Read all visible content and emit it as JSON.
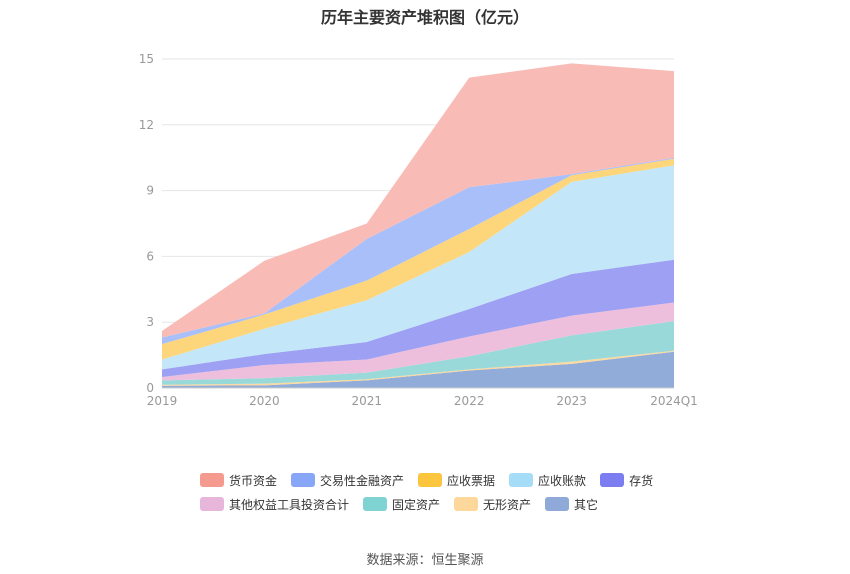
{
  "chart_data": {
    "type": "area",
    "stacked": true,
    "title": "历年主要资产堆积图（亿元）",
    "categories": [
      "2019",
      "2020",
      "2021",
      "2022",
      "2023",
      "2024Q1"
    ],
    "ylim": [
      0,
      15
    ],
    "yticks": [
      0,
      3,
      6,
      9,
      12,
      15
    ],
    "grid": true,
    "legend_position": "bottom",
    "series": [
      {
        "name": "其它",
        "color": "#92acd9",
        "values": [
          0.1,
          0.12,
          0.35,
          0.8,
          1.1,
          1.65
        ]
      },
      {
        "name": "无形资产",
        "color": "#fcd9a1",
        "values": [
          0.05,
          0.08,
          0.05,
          0.05,
          0.1,
          0.05
        ]
      },
      {
        "name": "固定资产",
        "color": "#9ad9d9",
        "values": [
          0.2,
          0.25,
          0.3,
          0.6,
          1.2,
          1.35
        ]
      },
      {
        "name": "其他权益工具投资合计",
        "color": "#eebfdd",
        "values": [
          0.15,
          0.6,
          0.6,
          0.9,
          0.9,
          0.85
        ]
      },
      {
        "name": "存货",
        "color": "#9da0f3",
        "values": [
          0.35,
          0.5,
          0.8,
          1.25,
          1.9,
          1.95
        ]
      },
      {
        "name": "应收账款",
        "color": "#c3e7f9",
        "values": [
          0.45,
          1.15,
          1.9,
          2.6,
          4.2,
          4.3
        ]
      },
      {
        "name": "应收票据",
        "color": "#fdd57b",
        "values": [
          0.7,
          0.65,
          0.9,
          1.05,
          0.3,
          0.3
        ]
      },
      {
        "name": "交易性金融资产",
        "color": "#a9bffa",
        "values": [
          0.3,
          0.05,
          1.9,
          1.9,
          0.05,
          0.05
        ]
      },
      {
        "name": "货币资金",
        "color": "#f9bbb5",
        "values": [
          0.3,
          2.4,
          0.7,
          5.0,
          5.05,
          3.95
        ]
      }
    ]
  },
  "legend": {
    "items": [
      {
        "label": "货币资金",
        "color": "#f59a8f"
      },
      {
        "label": "交易性金融资产",
        "color": "#88a6f8"
      },
      {
        "label": "应收票据",
        "color": "#fcc53e"
      },
      {
        "label": "应收账款",
        "color": "#a5ddf8"
      },
      {
        "label": "存货",
        "color": "#7b7df0"
      },
      {
        "label": "其他权益工具投资合计",
        "color": "#e8b6da"
      },
      {
        "label": "固定资产",
        "color": "#7fd4d3"
      },
      {
        "label": "无形资产",
        "color": "#fed89b"
      },
      {
        "label": "其它",
        "color": "#8fa9d8"
      }
    ]
  },
  "source": "数据来源：恒生聚源"
}
